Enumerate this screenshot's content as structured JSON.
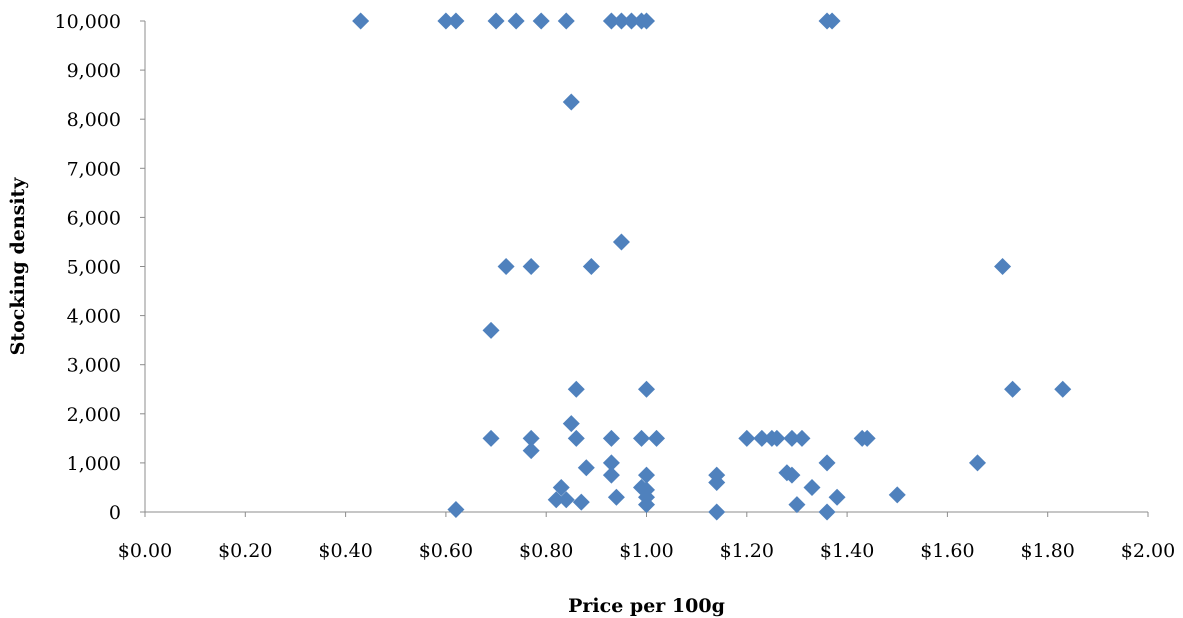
{
  "chart_data": {
    "type": "scatter",
    "xlabel": "Price per 100g",
    "ylabel": "Stocking density",
    "xlim": [
      0,
      2
    ],
    "ylim": [
      0,
      10000
    ],
    "x_ticks": [
      "$0.00",
      "$0.20",
      "$0.40",
      "$0.60",
      "$0.80",
      "$1.00",
      "$1.20",
      "$1.40",
      "$1.60",
      "$1.80",
      "$2.00"
    ],
    "y_ticks": [
      "0",
      "1,000",
      "2,000",
      "3,000",
      "4,000",
      "5,000",
      "6,000",
      "7,000",
      "8,000",
      "9,000",
      "10,000"
    ],
    "grid": false,
    "legend": "none",
    "marker": "diamond",
    "color": "#4f81bd",
    "points": [
      [
        0.43,
        10000
      ],
      [
        0.6,
        10000
      ],
      [
        0.62,
        10000
      ],
      [
        0.7,
        10000
      ],
      [
        0.74,
        10000
      ],
      [
        0.79,
        10000
      ],
      [
        0.84,
        10000
      ],
      [
        0.93,
        10000
      ],
      [
        0.95,
        10000
      ],
      [
        0.97,
        10000
      ],
      [
        0.99,
        10000
      ],
      [
        1.0,
        10000
      ],
      [
        1.36,
        10000
      ],
      [
        1.37,
        10000
      ],
      [
        0.85,
        8350
      ],
      [
        0.72,
        5000
      ],
      [
        0.77,
        5000
      ],
      [
        0.89,
        5000
      ],
      [
        1.71,
        5000
      ],
      [
        0.95,
        5500
      ],
      [
        0.69,
        3700
      ],
      [
        0.86,
        2500
      ],
      [
        1.0,
        2500
      ],
      [
        1.73,
        2500
      ],
      [
        1.83,
        2500
      ],
      [
        0.85,
        1800
      ],
      [
        0.69,
        1500
      ],
      [
        0.77,
        1500
      ],
      [
        0.86,
        1500
      ],
      [
        0.93,
        1500
      ],
      [
        0.99,
        1500
      ],
      [
        1.02,
        1500
      ],
      [
        1.2,
        1500
      ],
      [
        1.23,
        1500
      ],
      [
        1.25,
        1500
      ],
      [
        1.26,
        1500
      ],
      [
        1.29,
        1500
      ],
      [
        1.31,
        1500
      ],
      [
        1.43,
        1500
      ],
      [
        1.44,
        1500
      ],
      [
        0.77,
        1250
      ],
      [
        0.88,
        900
      ],
      [
        0.93,
        1000
      ],
      [
        1.36,
        1000
      ],
      [
        1.66,
        1000
      ],
      [
        0.93,
        750
      ],
      [
        1.0,
        750
      ],
      [
        1.14,
        750
      ],
      [
        1.28,
        800
      ],
      [
        1.29,
        750
      ],
      [
        0.83,
        500
      ],
      [
        0.99,
        500
      ],
      [
        1.0,
        450
      ],
      [
        1.14,
        600
      ],
      [
        1.33,
        500
      ],
      [
        0.82,
        250
      ],
      [
        0.84,
        250
      ],
      [
        0.87,
        200
      ],
      [
        0.94,
        300
      ],
      [
        1.0,
        300
      ],
      [
        1.0,
        150
      ],
      [
        1.3,
        150
      ],
      [
        1.38,
        300
      ],
      [
        1.5,
        350
      ],
      [
        0.62,
        50
      ],
      [
        1.14,
        0
      ],
      [
        1.36,
        0
      ]
    ]
  }
}
